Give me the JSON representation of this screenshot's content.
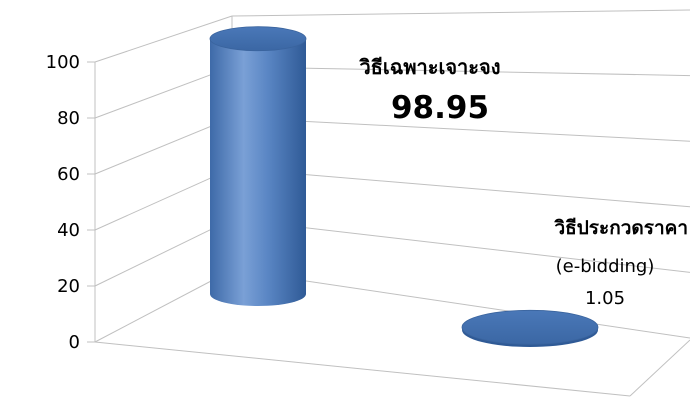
{
  "chart_data": {
    "type": "bar",
    "style": "3d-cylinder",
    "categories": [
      "วิธีเฉพาะเจาะจง",
      "วิธีประกวดราคา (e-bidding)"
    ],
    "values": [
      98.95,
      1.05
    ],
    "ylim": [
      0,
      100
    ],
    "yticks": [
      "0",
      "20",
      "40",
      "60",
      "80",
      "100"
    ],
    "grid": true,
    "legend": "none",
    "bar_color": "#4f81bd",
    "labels": [
      {
        "line1": "วิธีเฉพาะเจาะจง",
        "value": "98.95"
      },
      {
        "line1": "วิธีประกวดราคา",
        "line2": "(e-bidding)",
        "value": "1.05"
      }
    ]
  }
}
